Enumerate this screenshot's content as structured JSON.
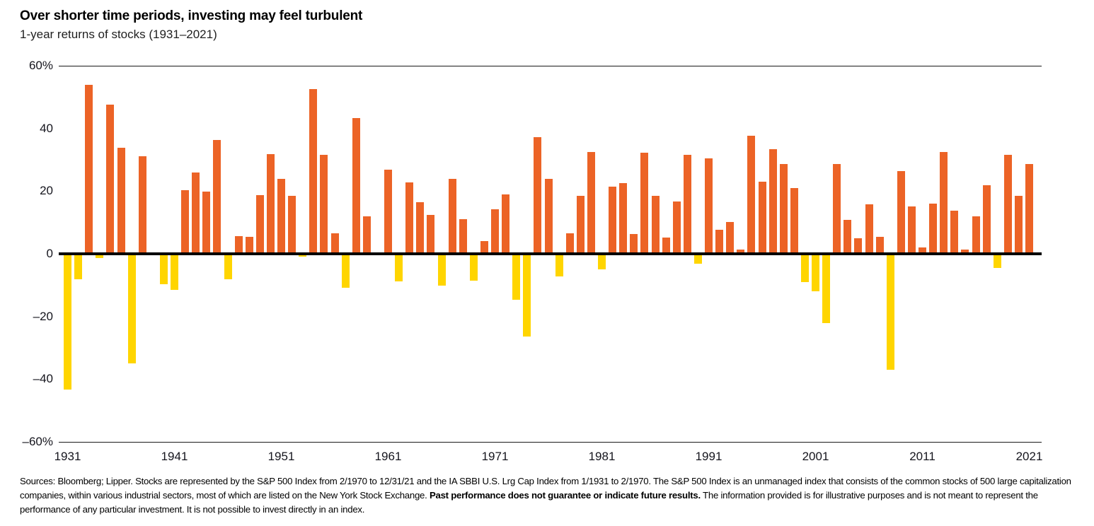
{
  "header": {
    "title": "Over shorter time periods, investing may feel turbulent",
    "subtitle": "1-year returns of stocks (1931–2021)"
  },
  "chart_data": {
    "type": "bar",
    "title": "1-year returns of stocks (1931–2021)",
    "unit": "%",
    "ylim": [
      -60,
      60
    ],
    "grid": "hairlines at +60% and -60% only, heavy black line at 0",
    "legend": "none",
    "positive_color": "#EC6326",
    "negative_color": "#FFD500",
    "zero_line_color": "#000000",
    "yticks": [
      {
        "value": 60,
        "label": "60%"
      },
      {
        "value": 40,
        "label": "40"
      },
      {
        "value": 20,
        "label": "20"
      },
      {
        "value": 0,
        "label": "0"
      },
      {
        "value": -20,
        "label": "–20"
      },
      {
        "value": -40,
        "label": "–40"
      },
      {
        "value": -60,
        "label": "–60%"
      }
    ],
    "xticks": [
      1931,
      1941,
      1951,
      1961,
      1971,
      1981,
      1991,
      2001,
      2011,
      2021
    ],
    "x": [
      1931,
      1932,
      1933,
      1934,
      1935,
      1936,
      1937,
      1938,
      1939,
      1940,
      1941,
      1942,
      1943,
      1944,
      1945,
      1946,
      1947,
      1948,
      1949,
      1950,
      1951,
      1952,
      1953,
      1954,
      1955,
      1956,
      1957,
      1958,
      1959,
      1960,
      1961,
      1962,
      1963,
      1964,
      1965,
      1966,
      1967,
      1968,
      1969,
      1970,
      1971,
      1972,
      1973,
      1974,
      1975,
      1976,
      1977,
      1978,
      1979,
      1980,
      1981,
      1982,
      1983,
      1984,
      1985,
      1986,
      1987,
      1988,
      1989,
      1990,
      1991,
      1992,
      1993,
      1994,
      1995,
      1996,
      1997,
      1998,
      1999,
      2000,
      2001,
      2002,
      2003,
      2004,
      2005,
      2006,
      2007,
      2008,
      2009,
      2010,
      2011,
      2012,
      2013,
      2014,
      2015,
      2016,
      2017,
      2018,
      2019,
      2020,
      2021
    ],
    "values": [
      -43.3,
      -8.2,
      54.0,
      -1.4,
      47.7,
      33.9,
      -35.0,
      31.1,
      -0.4,
      -9.8,
      -11.6,
      20.3,
      25.9,
      19.8,
      36.4,
      -8.1,
      5.7,
      5.5,
      18.8,
      31.7,
      24.0,
      18.4,
      -1.0,
      52.6,
      31.6,
      6.6,
      -10.8,
      43.4,
      12.0,
      0.5,
      26.9,
      -8.7,
      22.8,
      16.5,
      12.5,
      -10.1,
      24.0,
      11.1,
      -8.5,
      4.0,
      14.3,
      19.0,
      -14.7,
      -26.5,
      37.2,
      23.8,
      -7.2,
      6.6,
      18.4,
      32.4,
      -4.9,
      21.4,
      22.5,
      6.3,
      32.2,
      18.5,
      5.2,
      16.8,
      31.5,
      -3.1,
      30.5,
      7.6,
      10.1,
      1.3,
      37.6,
      23.0,
      33.4,
      28.6,
      21.0,
      -9.1,
      -11.9,
      -22.1,
      28.7,
      10.9,
      4.9,
      15.8,
      5.5,
      -37.0,
      26.5,
      15.1,
      2.1,
      16.0,
      32.4,
      13.7,
      1.4,
      12.0,
      21.8,
      -4.4,
      31.5,
      18.4,
      28.7
    ]
  },
  "footer": {
    "text_before_bold": "Sources: Bloomberg; Lipper. Stocks are represented by the S&P 500 Index from 2/1970 to 12/31/21 and the IA SBBI U.S. Lrg Cap Index from 1/1931 to 2/1970. The S&P 500 Index is an unmanaged index that consists of the common stocks of 500 large capitalization companies, within various industrial sectors, most of which are listed on the New York Stock Exchange. ",
    "bold_text": "Past performance does not guarantee or indicate future results.",
    "text_after_bold": " The information provided is for illustrative purposes and is not meant to represent the performance of any particular investment. It is not possible to invest directly in an index."
  }
}
